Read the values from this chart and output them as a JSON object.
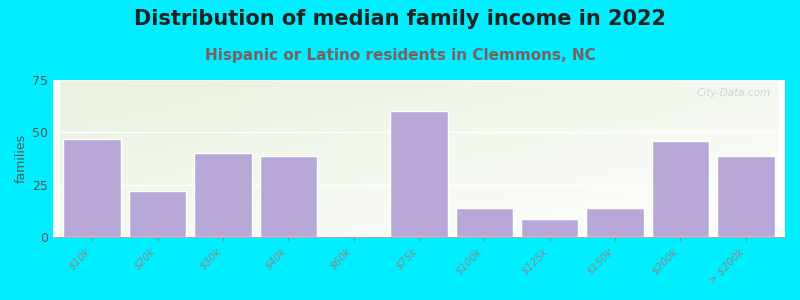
{
  "title": "Distribution of median family income in 2022",
  "subtitle": "Hispanic or Latino residents in Clemmons, NC",
  "categories": [
    "$10k",
    "$20k",
    "$30k",
    "$40k",
    "$60k",
    "$75k",
    "$100k",
    "$125k",
    "$150k",
    "$200k",
    "> $200k"
  ],
  "values": [
    47,
    22,
    40,
    39,
    0,
    60,
    14,
    9,
    14,
    46,
    39
  ],
  "bar_color": "#b8a8d8",
  "background_outer": "#00eeff",
  "ylabel": "families",
  "ylim": [
    0,
    75
  ],
  "yticks": [
    0,
    25,
    50,
    75
  ],
  "title_fontsize": 15,
  "title_color": "#222222",
  "subtitle_fontsize": 11,
  "subtitle_color": "#7a6060",
  "watermark": "City-Data.com",
  "wide_bars": [
    9,
    10
  ],
  "bar_widths": [
    0.8,
    0.8,
    0.8,
    0.8,
    0.8,
    0.8,
    0.8,
    0.8,
    0.8,
    1.6,
    1.8
  ]
}
